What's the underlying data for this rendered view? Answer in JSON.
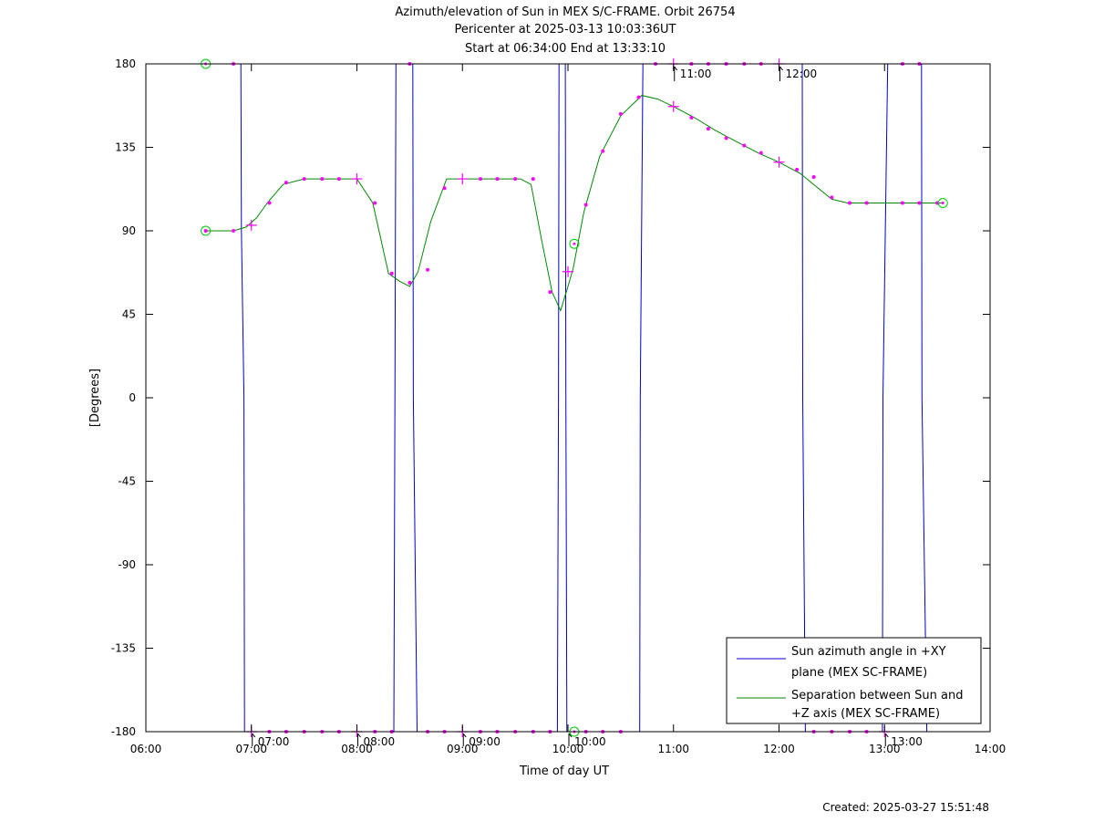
{
  "colors": {
    "azimuth": "#0000cc",
    "separation": "#008800",
    "marker": "#ff00ff",
    "endpoint": "#00cc00"
  },
  "chart_data": {
    "type": "line",
    "title": "Azimuth/elevation of Sun in MEX S/C-FRAME.  Orbit 26754",
    "subtitle_lines": [
      "Pericenter at 2025-03-13 10:03:36UT",
      "Start at 06:34:00 End at 13:33:10"
    ],
    "xlabel": "Time of day UT",
    "ylabel": "[Degrees]",
    "xlim_hours": [
      6,
      14
    ],
    "ylim": [
      -180,
      180
    ],
    "x_tick_labels": [
      "06:00",
      "07:00",
      "08:00",
      "09:00",
      "10:00",
      "11:00",
      "12:00",
      "13:00",
      "14:00"
    ],
    "x_tick_values": [
      6,
      7,
      8,
      9,
      10,
      11,
      12,
      13,
      14
    ],
    "y_tick_values": [
      180,
      135,
      90,
      45,
      0,
      -45,
      -90,
      -135,
      -180
    ],
    "y_tick_labels": [
      "180",
      "135",
      "90",
      "45",
      "0",
      "-45",
      "-90",
      "-135",
      "-180"
    ],
    "grid": false,
    "legend_position": "bottom-right",
    "annotations": [
      {
        "label": "07:00",
        "x": 7.0,
        "y": -180
      },
      {
        "label": "08:00",
        "x": 8.0,
        "y": -180
      },
      {
        "label": "09:00",
        "x": 9.0,
        "y": -180
      },
      {
        "label": "10:00",
        "x": 10.0,
        "y": -180
      },
      {
        "label": "11:00",
        "x": 11.0,
        "y": 180
      },
      {
        "label": "12:00",
        "x": 12.0,
        "y": 180
      },
      {
        "label": "13:00",
        "x": 13.0,
        "y": -180
      }
    ],
    "series": [
      {
        "name_lines": [
          "Sun azimuth angle in +XY",
          "plane (MEX SC-FRAME)"
        ],
        "x": [
          6.567,
          6.9,
          6.905,
          6.93,
          6.935,
          8.35,
          8.36,
          8.37,
          8.53,
          8.535,
          8.57,
          8.58,
          9.9,
          9.91,
          9.915,
          9.975,
          9.98,
          9.99,
          10.68,
          10.685,
          10.71,
          10.715,
          12.22,
          12.225,
          12.25,
          12.255,
          12.98,
          12.985,
          13.03,
          13.035,
          13.35,
          13.355,
          13.4,
          13.405
        ],
        "y": [
          180,
          180,
          90,
          0,
          -180,
          -180,
          0,
          180,
          180,
          0,
          -180,
          -180,
          -180,
          0,
          180,
          180,
          0,
          -180,
          -180,
          0,
          180,
          180,
          180,
          0,
          -180,
          -180,
          -180,
          0,
          180,
          180,
          180,
          0,
          -180,
          -180
        ]
      },
      {
        "name_lines": [
          "Separation between Sun and",
          "+Z axis (MEX SC-FRAME)"
        ],
        "x": [
          6.567,
          6.83,
          6.95,
          7.05,
          7.15,
          7.3,
          7.5,
          7.7,
          7.9,
          8.0,
          8.15,
          8.3,
          8.4,
          8.5,
          8.58,
          8.7,
          8.85,
          9.0,
          9.2,
          9.4,
          9.55,
          9.65,
          9.75,
          9.85,
          9.93,
          10.0,
          10.05,
          10.15,
          10.3,
          10.5,
          10.7,
          10.85,
          11.0,
          11.2,
          11.4,
          11.6,
          11.8,
          12.0,
          12.2,
          12.35,
          12.5,
          12.65,
          12.8,
          13.0,
          13.2,
          13.4,
          13.553
        ],
        "y": [
          90,
          90,
          92,
          97,
          105,
          115,
          118,
          118,
          118,
          118,
          105,
          67,
          63,
          60,
          68,
          95,
          118,
          118,
          118,
          118,
          118,
          115,
          85,
          57,
          47,
          60,
          70,
          100,
          130,
          152,
          163,
          161,
          157,
          151,
          144,
          138,
          132,
          127,
          121,
          114,
          107,
          105,
          105,
          105,
          105,
          105,
          105
        ]
      }
    ],
    "endpoint_circles": [
      {
        "x": 6.567,
        "y": 180
      },
      {
        "x": 6.567,
        "y": 90
      },
      {
        "x": 10.06,
        "y": 83
      },
      {
        "x": 10.06,
        "y": -180
      },
      {
        "x": 13.553,
        "y": 105
      }
    ],
    "plus_markers": [
      {
        "x": 7.0,
        "y": 93
      },
      {
        "x": 8.0,
        "y": 118
      },
      {
        "x": 9.0,
        "y": 118
      },
      {
        "x": 10.0,
        "y": 68
      },
      {
        "x": 11.0,
        "y": 157
      },
      {
        "x": 12.0,
        "y": 127
      },
      {
        "x": 11.0,
        "y": 180
      },
      {
        "x": 12.0,
        "y": 180
      },
      {
        "x": 7.0,
        "y": -180
      },
      {
        "x": 8.0,
        "y": -180
      },
      {
        "x": 9.0,
        "y": -180
      },
      {
        "x": 13.0,
        "y": -180
      }
    ],
    "dot_markers": [
      {
        "x": 6.567,
        "y": 90
      },
      {
        "x": 6.83,
        "y": 90
      },
      {
        "x": 7.17,
        "y": 105
      },
      {
        "x": 7.33,
        "y": 116
      },
      {
        "x": 7.5,
        "y": 118
      },
      {
        "x": 7.67,
        "y": 118
      },
      {
        "x": 7.83,
        "y": 118
      },
      {
        "x": 8.17,
        "y": 105
      },
      {
        "x": 8.33,
        "y": 67
      },
      {
        "x": 8.5,
        "y": 62
      },
      {
        "x": 8.67,
        "y": 69
      },
      {
        "x": 8.83,
        "y": 113
      },
      {
        "x": 9.17,
        "y": 118
      },
      {
        "x": 9.33,
        "y": 118
      },
      {
        "x": 9.5,
        "y": 118
      },
      {
        "x": 9.67,
        "y": 118
      },
      {
        "x": 9.83,
        "y": 57
      },
      {
        "x": 10.17,
        "y": 104
      },
      {
        "x": 10.33,
        "y": 133
      },
      {
        "x": 10.5,
        "y": 153
      },
      {
        "x": 10.67,
        "y": 162
      },
      {
        "x": 11.17,
        "y": 151
      },
      {
        "x": 11.33,
        "y": 145
      },
      {
        "x": 11.5,
        "y": 140
      },
      {
        "x": 11.67,
        "y": 136
      },
      {
        "x": 11.83,
        "y": 132
      },
      {
        "x": 12.17,
        "y": 123
      },
      {
        "x": 12.33,
        "y": 119
      },
      {
        "x": 12.5,
        "y": 108
      },
      {
        "x": 12.67,
        "y": 105
      },
      {
        "x": 12.83,
        "y": 105
      },
      {
        "x": 13.17,
        "y": 105
      },
      {
        "x": 13.33,
        "y": 105
      },
      {
        "x": 13.5,
        "y": 105
      },
      {
        "x": 6.83,
        "y": 180
      },
      {
        "x": 8.5,
        "y": 180
      },
      {
        "x": 10.83,
        "y": 180
      },
      {
        "x": 11.17,
        "y": 180
      },
      {
        "x": 11.33,
        "y": 180
      },
      {
        "x": 11.5,
        "y": 180
      },
      {
        "x": 11.67,
        "y": 180
      },
      {
        "x": 11.83,
        "y": 180
      },
      {
        "x": 13.17,
        "y": 180
      },
      {
        "x": 13.33,
        "y": 180
      },
      {
        "x": 7.17,
        "y": -180
      },
      {
        "x": 7.33,
        "y": -180
      },
      {
        "x": 7.5,
        "y": -180
      },
      {
        "x": 7.67,
        "y": -180
      },
      {
        "x": 7.83,
        "y": -180
      },
      {
        "x": 8.17,
        "y": -180
      },
      {
        "x": 8.33,
        "y": -180
      },
      {
        "x": 8.67,
        "y": -180
      },
      {
        "x": 8.83,
        "y": -180
      },
      {
        "x": 9.17,
        "y": -180
      },
      {
        "x": 9.33,
        "y": -180
      },
      {
        "x": 9.5,
        "y": -180
      },
      {
        "x": 9.67,
        "y": -180
      },
      {
        "x": 9.83,
        "y": -180
      },
      {
        "x": 10.17,
        "y": -180
      },
      {
        "x": 10.33,
        "y": -180
      },
      {
        "x": 10.5,
        "y": -180
      },
      {
        "x": 12.33,
        "y": -180
      },
      {
        "x": 12.5,
        "y": -180
      },
      {
        "x": 12.67,
        "y": -180
      },
      {
        "x": 12.83,
        "y": -180
      }
    ]
  },
  "footer": {
    "created": "Created: 2025-03-27 15:51:48"
  }
}
